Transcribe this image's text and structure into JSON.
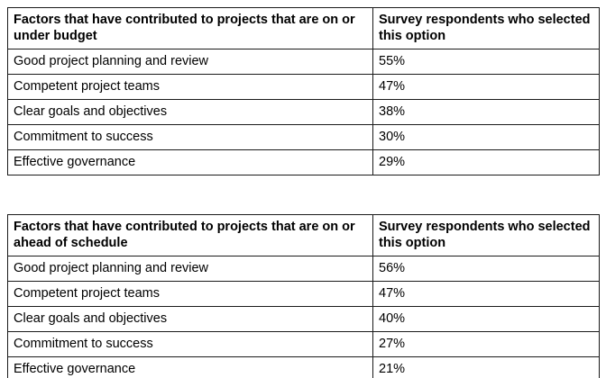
{
  "tables": [
    {
      "columns": [
        "Factors that have contributed to projects that are on or under budget",
        "Survey respondents who selected this option"
      ],
      "rows": [
        [
          "Good project planning and review",
          "55%"
        ],
        [
          "Competent project teams",
          "47%"
        ],
        [
          "Clear goals and objectives",
          "38%"
        ],
        [
          "Commitment to success",
          "30%"
        ],
        [
          "Effective governance",
          "29%"
        ]
      ]
    },
    {
      "columns": [
        "Factors that have contributed to projects that are on or ahead of schedule",
        "Survey respondents who selected this option"
      ],
      "rows": [
        [
          "Good project planning and review",
          "56%"
        ],
        [
          "Competent project teams",
          "47%"
        ],
        [
          "Clear goals and objectives",
          "40%"
        ],
        [
          "Commitment to success",
          "27%"
        ],
        [
          "Effective governance",
          "21%"
        ]
      ]
    }
  ]
}
